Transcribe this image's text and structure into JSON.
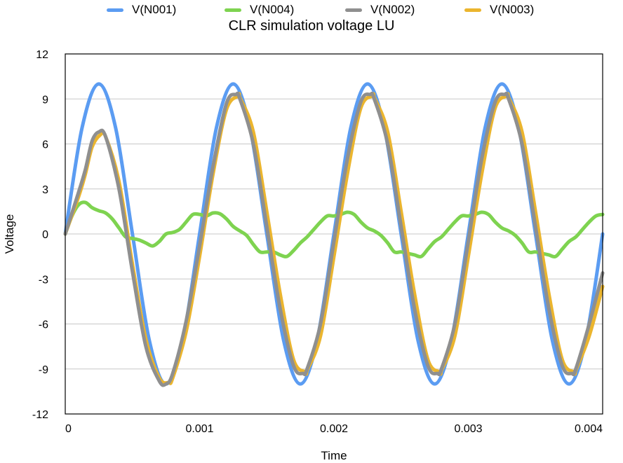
{
  "chart_data": {
    "type": "line",
    "title": "CLR simulation voltage LU",
    "xlabel": "Time",
    "ylabel": "Voltage",
    "xlim": [
      0,
      0.004
    ],
    "ylim": [
      -12,
      12
    ],
    "xticks": [
      "0",
      "0.001",
      "0.002",
      "0.003",
      "0.004"
    ],
    "xtick_values": [
      0,
      0.001,
      0.002,
      0.003,
      0.004
    ],
    "yticks": [
      "12",
      "9",
      "6",
      "3",
      "0",
      "-3",
      "-6",
      "-9",
      "-12"
    ],
    "ytick_values": [
      12,
      9,
      6,
      3,
      0,
      -3,
      -6,
      -9,
      -12
    ],
    "grid": true,
    "legend_position": "top",
    "series": [
      {
        "name": "V(N001)",
        "color": "#5B9CF2",
        "x": [
          0,
          0.000125,
          0.00025,
          0.000375,
          0.0005,
          0.000625,
          0.00075,
          0.000875,
          0.001,
          0.001125,
          0.00125,
          0.001375,
          0.0015,
          0.001625,
          0.00175,
          0.001875,
          0.002,
          0.002125,
          0.00225,
          0.002375,
          0.0025,
          0.002625,
          0.00275,
          0.002875,
          0.003,
          0.003125,
          0.00325,
          0.003375,
          0.0035,
          0.003625,
          0.00375,
          0.003875,
          0.004
        ],
        "y": [
          0,
          7.07,
          10,
          7.07,
          0,
          -7.07,
          -10,
          -7.07,
          0,
          7.07,
          10,
          7.07,
          0,
          -7.07,
          -10,
          -7.07,
          0,
          7.07,
          10,
          7.07,
          0,
          -7.07,
          -10,
          -7.07,
          0,
          7.07,
          10,
          7.07,
          0,
          -7.07,
          -10,
          -7.07,
          0
        ]
      },
      {
        "name": "V(N004)",
        "color": "#7ED350",
        "x": [
          0,
          5e-05,
          0.0001,
          0.00015,
          0.0002,
          0.00025,
          0.0003,
          0.00035,
          0.0004,
          0.00045,
          0.0005,
          0.00055,
          0.0006,
          0.00065,
          0.0007,
          0.00075,
          0.0008,
          0.00085,
          0.0009,
          0.00095,
          0.001,
          0.00105,
          0.0011,
          0.00115,
          0.0012,
          0.00125,
          0.0013,
          0.00135,
          0.0014,
          0.00145,
          0.0015,
          0.00155,
          0.0016,
          0.00165,
          0.0017,
          0.00175,
          0.0018,
          0.00185,
          0.0019,
          0.00195,
          0.002,
          0.00205,
          0.0021,
          0.00215,
          0.0022,
          0.00225,
          0.0023,
          0.00235,
          0.0024,
          0.00245,
          0.0025,
          0.00255,
          0.0026,
          0.00265,
          0.0027,
          0.00275,
          0.0028,
          0.00285,
          0.0029,
          0.00295,
          0.003,
          0.00305,
          0.0031,
          0.00315,
          0.0032,
          0.00325,
          0.0033,
          0.00335,
          0.0034,
          0.00345,
          0.0035,
          0.00355,
          0.0036,
          0.00365,
          0.0037,
          0.00375,
          0.0038,
          0.00385,
          0.0039,
          0.00395,
          0.004
        ],
        "y": [
          0,
          1.2,
          1.95,
          2.1,
          1.75,
          1.55,
          1.4,
          1.0,
          0.4,
          -0.2,
          -0.3,
          -0.4,
          -0.6,
          -0.8,
          -0.5,
          0,
          0.1,
          0.3,
          0.8,
          1.3,
          1.3,
          1.2,
          1.4,
          1.35,
          1.0,
          0.5,
          0.2,
          -0.1,
          -0.7,
          -1.2,
          -1.2,
          -1.2,
          -1.4,
          -1.5,
          -1.1,
          -0.6,
          -0.2,
          0.3,
          0.8,
          1.2,
          1.2,
          1.3,
          1.45,
          1.3,
          0.8,
          0.4,
          0.2,
          -0.1,
          -0.6,
          -1.2,
          -1.2,
          -1.3,
          -1.4,
          -1.5,
          -1.0,
          -0.5,
          -0.2,
          0.3,
          0.8,
          1.2,
          1.2,
          1.3,
          1.45,
          1.3,
          0.8,
          0.4,
          0.2,
          -0.1,
          -0.6,
          -1.2,
          -1.2,
          -1.3,
          -1.4,
          -1.5,
          -1.0,
          -0.5,
          -0.2,
          0.3,
          0.8,
          1.2,
          1.3
        ]
      },
      {
        "name": "V(N002)",
        "color": "#8F8F8F",
        "x": [
          0,
          0.0001,
          0.00015,
          0.0002,
          0.00025,
          0.0003,
          0.0004,
          0.0005,
          0.0006,
          0.0007,
          0.00075,
          0.0008,
          0.0009,
          0.001,
          0.0011,
          0.0012,
          0.00127,
          0.0013,
          0.0014,
          0.0015,
          0.0016,
          0.0017,
          0.00177,
          0.0018,
          0.0019,
          0.002,
          0.0021,
          0.0022,
          0.00227,
          0.0023,
          0.0024,
          0.0025,
          0.0026,
          0.0027,
          0.00277,
          0.0028,
          0.0029,
          0.003,
          0.0031,
          0.0032,
          0.00327,
          0.0033,
          0.0034,
          0.0035,
          0.0036,
          0.0037,
          0.00377,
          0.0038,
          0.0039,
          0.004
        ],
        "y": [
          0,
          2.8,
          4.3,
          6.2,
          6.8,
          6.5,
          3.0,
          -2.5,
          -7.5,
          -9.8,
          -10.0,
          -9.3,
          -5.8,
          -0.8,
          4.5,
          8.7,
          9.3,
          9.0,
          6.0,
          0.5,
          -5.0,
          -8.8,
          -9.3,
          -9.0,
          -6.0,
          -0.5,
          5.0,
          8.8,
          9.3,
          9.0,
          6.0,
          0.5,
          -5.0,
          -8.8,
          -9.3,
          -9.0,
          -6.0,
          -0.5,
          5.0,
          8.8,
          9.3,
          9.0,
          6.0,
          0.5,
          -5.0,
          -8.8,
          -9.3,
          -9.0,
          -6.0,
          -2.6
        ]
      },
      {
        "name": "V(N003)",
        "color": "#EBB52E",
        "x": [
          0,
          0.0001,
          0.00015,
          0.0002,
          0.00026,
          0.0003,
          0.0004,
          0.0005,
          0.0006,
          0.0007,
          0.00077,
          0.0008,
          0.0009,
          0.001,
          0.0011,
          0.0012,
          0.00129,
          0.0013,
          0.0014,
          0.0015,
          0.0016,
          0.0017,
          0.00179,
          0.0018,
          0.0019,
          0.002,
          0.0021,
          0.0022,
          0.00229,
          0.0023,
          0.0024,
          0.0025,
          0.0026,
          0.0027,
          0.00279,
          0.0028,
          0.0029,
          0.003,
          0.0031,
          0.0032,
          0.00329,
          0.0033,
          0.0034,
          0.0035,
          0.0036,
          0.0037,
          0.00379,
          0.0038,
          0.0039,
          0.004
        ],
        "y": [
          0,
          2.5,
          4.0,
          5.8,
          6.6,
          6.5,
          3.5,
          -2.0,
          -7.0,
          -9.6,
          -9.9,
          -9.6,
          -6.5,
          -1.5,
          4.0,
          8.3,
          9.2,
          9.1,
          6.8,
          1.5,
          -4.0,
          -8.4,
          -9.2,
          -9.1,
          -6.8,
          -1.5,
          4.0,
          8.4,
          9.2,
          9.1,
          6.8,
          1.5,
          -4.0,
          -8.4,
          -9.2,
          -9.1,
          -6.8,
          -1.5,
          4.0,
          8.4,
          9.2,
          9.1,
          6.8,
          1.5,
          -4.0,
          -8.4,
          -9.2,
          -9.1,
          -6.8,
          -3.5
        ]
      }
    ]
  }
}
